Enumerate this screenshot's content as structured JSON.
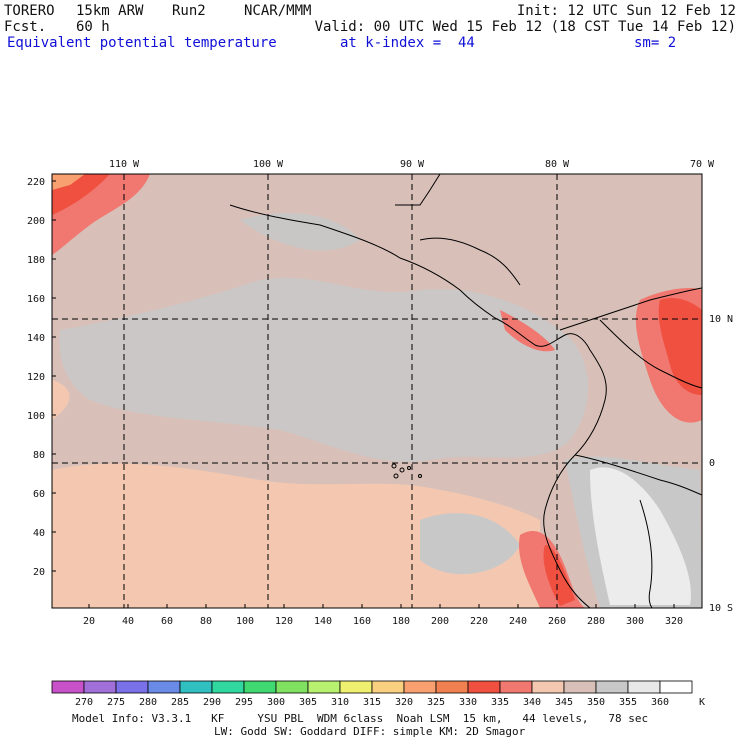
{
  "header": {
    "model": "TORERO",
    "resolution": "15km ARW",
    "run": "Run2",
    "org": "NCAR/MMM",
    "init": "Init: 12 UTC Sun 12 Feb 12",
    "fcst_label": "Fcst.",
    "fcst_value": "60 h",
    "valid": "Valid: 00 UTC Wed 15 Feb 12 (18 CST Tue 14 Feb 12)",
    "field": "Equivalent potential temperature",
    "level": "at k-index =  44",
    "smoothing": "sm= 2"
  },
  "map": {
    "lon_labels": [
      "110 W",
      "100 W",
      "90 W",
      "80 W",
      "70 W"
    ],
    "lat_labels": [
      "10 N",
      "0",
      "10 S"
    ],
    "y_ticks": [
      "220",
      "200",
      "180",
      "160",
      "140",
      "120",
      "100",
      "80",
      "60",
      "40",
      "20"
    ],
    "x_ticks": [
      "20",
      "40",
      "60",
      "80",
      "100",
      "120",
      "140",
      "160",
      "180",
      "200",
      "220",
      "240",
      "260",
      "280",
      "300",
      "320"
    ]
  },
  "colorbar": {
    "labels": [
      "270",
      "275",
      "280",
      "285",
      "290",
      "295",
      "300",
      "305",
      "310",
      "315",
      "320",
      "325",
      "330",
      "335",
      "340",
      "345",
      "350",
      "355",
      "360"
    ],
    "unit": "K",
    "colors": [
      "#c850c8",
      "#a070d8",
      "#7a70e8",
      "#6a8ae8",
      "#30c0c0",
      "#30d8a0",
      "#40d870",
      "#80e060",
      "#b8f070",
      "#f0f070",
      "#f8d080",
      "#f8a070",
      "#f08050",
      "#f05040",
      "#f07870",
      "#f4c8b0",
      "#d8c0b8",
      "#c8c8c8",
      "#e8e8e8",
      "#ffffff"
    ]
  },
  "footer": {
    "line1": "Model Info: V3.3.1   KF     YSU PBL  WDM 6class  Noah LSM  15 km,   44 levels,   78 sec",
    "line2": "LW: Godd SW: Goddard DIFF: simple KM: 2D Smagor"
  }
}
